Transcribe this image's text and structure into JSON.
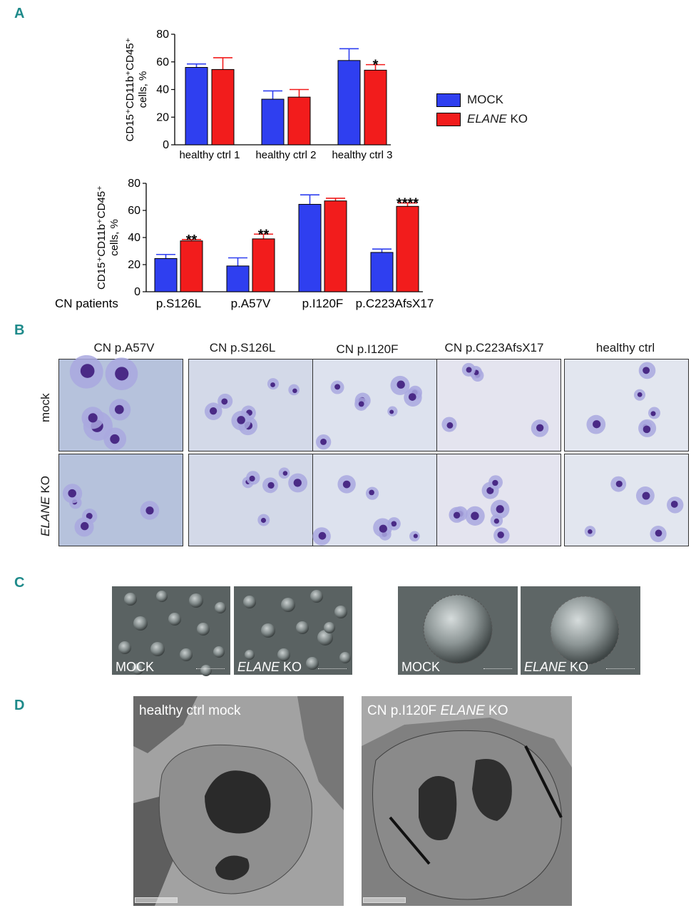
{
  "panels": {
    "a": "A",
    "b": "B",
    "c": "C",
    "d": "D"
  },
  "legend": {
    "mock": "MOCK",
    "ko_italic": "ELANE",
    "ko_rest": " KO"
  },
  "chart_data": [
    {
      "type": "bar",
      "ylabel_line1": "CD15⁺CD11b⁺CD45⁺",
      "ylabel_line2": "cells, %",
      "ylim": [
        0,
        80
      ],
      "yticks": [
        0,
        20,
        40,
        60,
        80
      ],
      "categories": [
        "healthy ctrl 1",
        "healthy ctrl 2",
        "healthy ctrl 3"
      ],
      "series": [
        {
          "name": "MOCK",
          "color": "#2f3ff0",
          "values": [
            56,
            33,
            61
          ],
          "errors": [
            2.5,
            6,
            8.5
          ]
        },
        {
          "name": "ELANE KO",
          "color": "#f21c1c",
          "values": [
            54.5,
            34.5,
            54
          ],
          "errors": [
            8.5,
            5.5,
            4
          ]
        }
      ],
      "significance": [
        "",
        "",
        "*"
      ]
    },
    {
      "type": "bar",
      "ylabel_line1": "CD15⁺CD11b⁺CD45⁺",
      "ylabel_line2": "cells, %",
      "row_label": "CN patients",
      "ylim": [
        0,
        80
      ],
      "yticks": [
        0,
        20,
        40,
        60,
        80
      ],
      "categories": [
        "p.S126L",
        "p.A57V",
        "p.I120F",
        "p.C223AfsX17"
      ],
      "series": [
        {
          "name": "MOCK",
          "color": "#2f3ff0",
          "values": [
            24.5,
            19,
            64.5,
            29
          ],
          "errors": [
            3,
            6,
            7,
            2.5
          ]
        },
        {
          "name": "ELANE KO",
          "color": "#f21c1c",
          "values": [
            37.5,
            39,
            67,
            63
          ],
          "errors": [
            1,
            3.5,
            2,
            2.5
          ]
        }
      ],
      "significance": [
        "**",
        "**",
        "",
        "****"
      ]
    }
  ],
  "panel_b": {
    "columns": [
      "CN p.A57V",
      "CN p.S126L",
      "CN p.I120F",
      "CN p.C223AfsX17",
      "healthy ctrl"
    ],
    "rows": {
      "mock": "mock",
      "ko_italic": "ELANE",
      "ko_rest": " KO"
    }
  },
  "panel_c": {
    "mock": "MOCK",
    "ko_italic": "ELANE",
    "ko_rest": " KO"
  },
  "panel_d": {
    "left": "healthy ctrl mock",
    "right_prefix": "CN p.I120F ",
    "right_italic": "ELANE",
    "right_rest": " KO"
  }
}
